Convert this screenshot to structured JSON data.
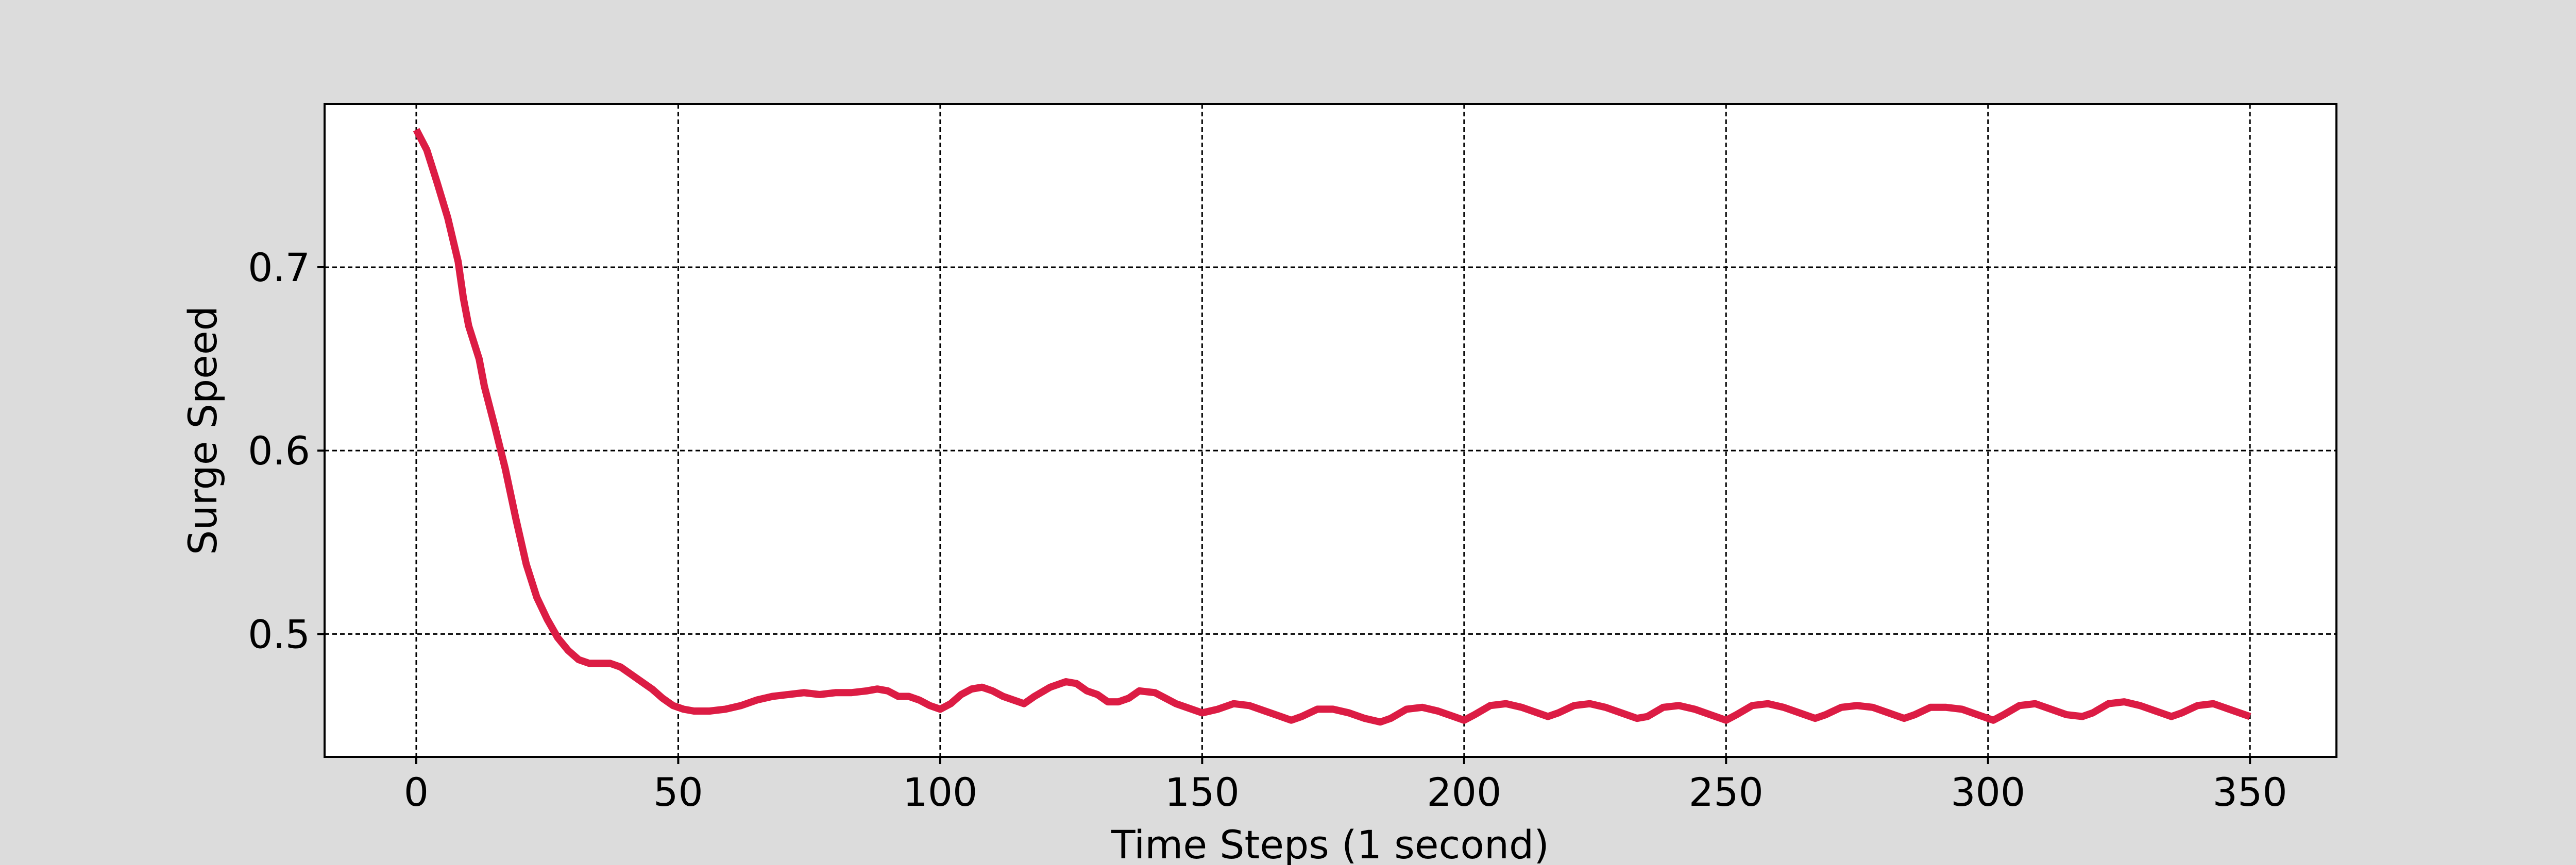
{
  "chart_data": {
    "type": "line",
    "title": "",
    "xlabel": "Time Steps (1 second)",
    "ylabel": "Surge Speed",
    "xlim": [
      -17.5,
      366.5
    ],
    "ylim": [
      0.433,
      0.789
    ],
    "x_ticks": [
      0,
      50,
      100,
      150,
      200,
      250,
      300,
      350
    ],
    "y_ticks": [
      0.5,
      0.6,
      0.7
    ],
    "x_tick_labels": [
      "0",
      "50",
      "100",
      "150",
      "200",
      "250",
      "300",
      "350"
    ],
    "y_tick_labels": [
      "0.5",
      "0.6",
      "0.7"
    ],
    "grid": true,
    "legend": false,
    "series": [
      {
        "color": "#dc1c44",
        "points": [
          [
            0,
            0.775
          ],
          [
            2,
            0.764
          ],
          [
            4,
            0.746
          ],
          [
            6,
            0.727
          ],
          [
            8,
            0.703
          ],
          [
            9,
            0.683
          ],
          [
            10,
            0.668
          ],
          [
            12,
            0.65
          ],
          [
            13,
            0.635
          ],
          [
            15,
            0.613
          ],
          [
            17,
            0.59
          ],
          [
            19,
            0.563
          ],
          [
            21,
            0.538
          ],
          [
            23,
            0.52
          ],
          [
            25,
            0.508
          ],
          [
            27,
            0.498
          ],
          [
            29,
            0.491
          ],
          [
            31,
            0.486
          ],
          [
            33,
            0.484
          ],
          [
            35,
            0.484
          ],
          [
            37,
            0.484
          ],
          [
            39,
            0.482
          ],
          [
            41,
            0.478
          ],
          [
            43,
            0.474
          ],
          [
            45,
            0.47
          ],
          [
            47,
            0.465
          ],
          [
            49,
            0.461
          ],
          [
            51,
            0.459
          ],
          [
            53,
            0.458
          ],
          [
            56,
            0.458
          ],
          [
            59,
            0.459
          ],
          [
            62,
            0.461
          ],
          [
            65,
            0.464
          ],
          [
            68,
            0.466
          ],
          [
            71,
            0.467
          ],
          [
            74,
            0.468
          ],
          [
            77,
            0.467
          ],
          [
            80,
            0.468
          ],
          [
            83,
            0.468
          ],
          [
            86,
            0.469
          ],
          [
            88,
            0.47
          ],
          [
            90,
            0.469
          ],
          [
            92,
            0.466
          ],
          [
            94,
            0.466
          ],
          [
            96,
            0.464
          ],
          [
            98,
            0.461
          ],
          [
            100,
            0.459
          ],
          [
            102,
            0.462
          ],
          [
            104,
            0.467
          ],
          [
            106,
            0.47
          ],
          [
            108,
            0.471
          ],
          [
            110,
            0.469
          ],
          [
            112,
            0.466
          ],
          [
            115,
            0.463
          ],
          [
            116,
            0.462
          ],
          [
            118,
            0.466
          ],
          [
            121,
            0.471
          ],
          [
            124,
            0.474
          ],
          [
            126,
            0.473
          ],
          [
            128,
            0.469
          ],
          [
            130,
            0.467
          ],
          [
            132,
            0.463
          ],
          [
            134,
            0.463
          ],
          [
            136,
            0.465
          ],
          [
            138,
            0.469
          ],
          [
            141,
            0.468
          ],
          [
            143,
            0.465
          ],
          [
            145,
            0.462
          ],
          [
            148,
            0.459
          ],
          [
            150,
            0.457
          ],
          [
            153,
            0.459
          ],
          [
            156,
            0.462
          ],
          [
            159,
            0.461
          ],
          [
            162,
            0.458
          ],
          [
            165,
            0.455
          ],
          [
            167,
            0.453
          ],
          [
            169,
            0.455
          ],
          [
            172,
            0.459
          ],
          [
            175,
            0.459
          ],
          [
            178,
            0.457
          ],
          [
            181,
            0.454
          ],
          [
            184,
            0.452
          ],
          [
            186,
            0.454
          ],
          [
            189,
            0.459
          ],
          [
            192,
            0.46
          ],
          [
            195,
            0.458
          ],
          [
            198,
            0.455
          ],
          [
            200,
            0.453
          ],
          [
            202,
            0.456
          ],
          [
            205,
            0.461
          ],
          [
            208,
            0.462
          ],
          [
            211,
            0.46
          ],
          [
            214,
            0.457
          ],
          [
            216,
            0.455
          ],
          [
            218,
            0.457
          ],
          [
            221,
            0.461
          ],
          [
            224,
            0.462
          ],
          [
            227,
            0.46
          ],
          [
            230,
            0.457
          ],
          [
            233,
            0.454
          ],
          [
            235,
            0.455
          ],
          [
            238,
            0.46
          ],
          [
            241,
            0.461
          ],
          [
            244,
            0.459
          ],
          [
            247,
            0.456
          ],
          [
            250,
            0.453
          ],
          [
            252,
            0.456
          ],
          [
            255,
            0.461
          ],
          [
            258,
            0.462
          ],
          [
            261,
            0.46
          ],
          [
            264,
            0.457
          ],
          [
            267,
            0.454
          ],
          [
            269,
            0.456
          ],
          [
            272,
            0.46
          ],
          [
            275,
            0.461
          ],
          [
            278,
            0.46
          ],
          [
            281,
            0.457
          ],
          [
            284,
            0.454
          ],
          [
            286,
            0.456
          ],
          [
            289,
            0.46
          ],
          [
            292,
            0.46
          ],
          [
            295,
            0.459
          ],
          [
            298,
            0.456
          ],
          [
            301,
            0.453
          ],
          [
            303,
            0.456
          ],
          [
            306,
            0.461
          ],
          [
            309,
            0.462
          ],
          [
            312,
            0.459
          ],
          [
            315,
            0.456
          ],
          [
            318,
            0.455
          ],
          [
            320,
            0.457
          ],
          [
            323,
            0.462
          ],
          [
            326,
            0.463
          ],
          [
            329,
            0.461
          ],
          [
            332,
            0.458
          ],
          [
            335,
            0.455
          ],
          [
            337,
            0.457
          ],
          [
            340,
            0.461
          ],
          [
            343,
            0.462
          ],
          [
            346,
            0.459
          ],
          [
            350,
            0.455
          ]
        ]
      }
    ]
  }
}
